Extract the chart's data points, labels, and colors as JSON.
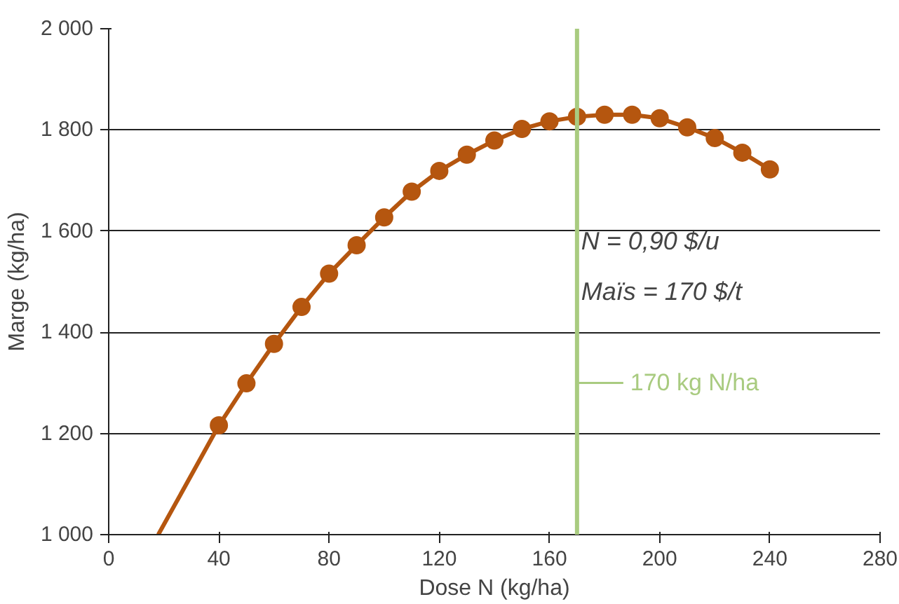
{
  "chart_data": {
    "type": "line",
    "xlabel": "Dose N (kg/ha)",
    "ylabel": "Marge (kg/ha)",
    "xlim": [
      0,
      280
    ],
    "xticks": [
      0,
      40,
      80,
      120,
      160,
      200,
      240,
      280
    ],
    "ylim": [
      1000,
      2000
    ],
    "yticks": [
      {
        "value": 1000,
        "label": "1 000"
      },
      {
        "value": 1200,
        "label": "1 200"
      },
      {
        "value": 1400,
        "label": "1 400"
      },
      {
        "value": 1600,
        "label": "1 600"
      },
      {
        "value": 1800,
        "label": "1 800"
      },
      {
        "value": 2000,
        "label": "2 000"
      }
    ],
    "grid": "y",
    "series": [
      {
        "marker": "none",
        "color": "#b5560f",
        "x": [
          18,
          40,
          50,
          60,
          70,
          80,
          90,
          100,
          110,
          120,
          130,
          140,
          150,
          160,
          170,
          180,
          190,
          200,
          210,
          220,
          230,
          240
        ],
        "values": [
          1000,
          1216,
          1299,
          1377,
          1450,
          1516,
          1572,
          1627,
          1678,
          1719,
          1751,
          1779,
          1802,
          1817,
          1826,
          1830,
          1830,
          1823,
          1805,
          1784,
          1755,
          1722
        ]
      },
      {
        "type": "scatter",
        "marker": "circle",
        "color": "#b5560f",
        "x": [
          40,
          50,
          60,
          70,
          80,
          90,
          100,
          110,
          120,
          130,
          140,
          150,
          160,
          170,
          180,
          190,
          200,
          210,
          220,
          230,
          240
        ],
        "values": [
          1216,
          1299,
          1377,
          1450,
          1516,
          1572,
          1627,
          1678,
          1719,
          1751,
          1779,
          1802,
          1817,
          1826,
          1830,
          1830,
          1823,
          1805,
          1784,
          1755,
          1722
        ]
      }
    ],
    "ref_lines": [
      {
        "axis": "x",
        "value": 170,
        "label": "170 kg N/ha",
        "color": "#a9cb80"
      }
    ],
    "annotations": [
      "N = 0,90 $/u",
      "Maïs = 170 $/t"
    ]
  }
}
